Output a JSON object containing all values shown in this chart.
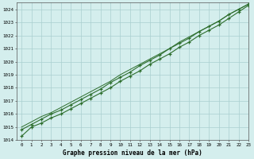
{
  "title": "Graphe pression niveau de la mer (hPa)",
  "bg_color": "#d4eeed",
  "grid_color": "#aacfcf",
  "line_color": "#2d6e2d",
  "xlim": [
    -0.5,
    23
  ],
  "ylim": [
    1014,
    1024.5
  ],
  "yticks": [
    1014,
    1015,
    1016,
    1017,
    1018,
    1019,
    1020,
    1021,
    1022,
    1023,
    1024
  ],
  "xticks": [
    0,
    1,
    2,
    3,
    4,
    5,
    6,
    7,
    8,
    9,
    10,
    11,
    12,
    13,
    14,
    15,
    16,
    17,
    18,
    19,
    20,
    21,
    22,
    23
  ],
  "series1": [
    1014.3,
    1015.0,
    1015.3,
    1015.7,
    1016.0,
    1016.4,
    1016.8,
    1017.2,
    1017.6,
    1018.0,
    1018.5,
    1018.9,
    1019.3,
    1019.8,
    1020.2,
    1020.6,
    1021.1,
    1021.5,
    1022.0,
    1022.4,
    1022.8,
    1023.3,
    1023.8,
    1024.3
  ],
  "series2": [
    1014.8,
    1015.2,
    1015.6,
    1016.0,
    1016.3,
    1016.7,
    1017.1,
    1017.5,
    1017.9,
    1018.4,
    1018.8,
    1019.2,
    1019.7,
    1020.1,
    1020.5,
    1021.0,
    1021.4,
    1021.8,
    1022.3,
    1022.7,
    1023.1,
    1023.6,
    1024.0,
    1024.4
  ],
  "series3": [
    1015.0,
    1015.4,
    1015.8,
    1016.1,
    1016.5,
    1016.9,
    1017.3,
    1017.7,
    1018.1,
    1018.5,
    1019.0,
    1019.4,
    1019.8,
    1020.2,
    1020.6,
    1021.0,
    1021.5,
    1021.9,
    1022.3,
    1022.7,
    1023.1,
    1023.6,
    1024.0,
    1024.4
  ]
}
